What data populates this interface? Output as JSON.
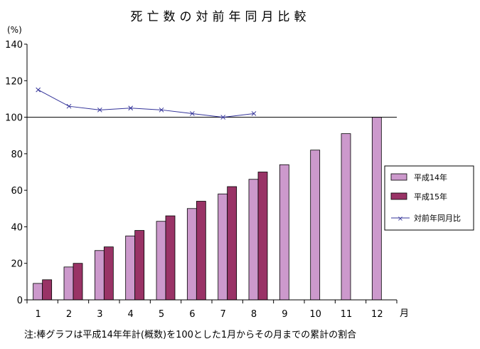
{
  "chart_data": {
    "type": "bar",
    "title": "死亡数の対前年同月比較",
    "y_unit_label": "(%)",
    "x_unit_label": "月",
    "categories": [
      "1",
      "2",
      "3",
      "4",
      "5",
      "6",
      "7",
      "8",
      "9",
      "10",
      "11",
      "12"
    ],
    "ylim": [
      0,
      140
    ],
    "y_ticks": [
      "0",
      "20",
      "40",
      "60",
      "80",
      "100",
      "120",
      "140"
    ],
    "reference_line": 100,
    "grid": false,
    "series": [
      {
        "name": "平成14年",
        "kind": "bar",
        "color": "#cc99cc",
        "values": [
          9,
          18,
          27,
          35,
          43,
          50,
          58,
          66,
          74,
          82,
          91,
          100
        ]
      },
      {
        "name": "平成15年",
        "kind": "bar",
        "color": "#993366",
        "values": [
          11,
          20,
          29,
          38,
          46,
          54,
          62,
          70,
          null,
          null,
          null,
          null
        ]
      },
      {
        "name": "対前年同月比",
        "kind": "line",
        "color": "#333399",
        "values": [
          115,
          106,
          104,
          105,
          104,
          102,
          100,
          102,
          null,
          null,
          null,
          null
        ]
      }
    ],
    "legend_position": "right",
    "footnote": "注:棒グラフは平成14年年計(概数)を100とした1月からその月までの累計の割合"
  }
}
